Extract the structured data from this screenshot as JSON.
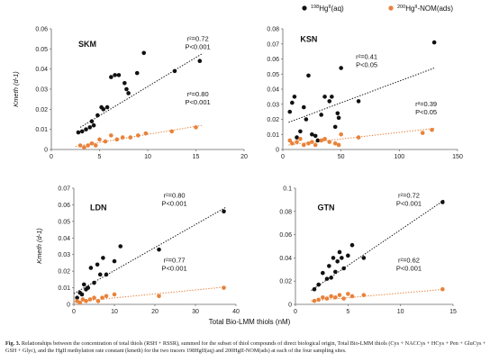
{
  "legend": {
    "items": [
      {
        "label": "198HgII(aq)",
        "color": "#111111"
      },
      {
        "label": "200HgII-NOM(ads)",
        "color": "#E8823A"
      }
    ]
  },
  "shared": {
    "ylabel": "Kmeth (d-1)",
    "xlabel": "Total Bio-LMM thiols (nM)"
  },
  "caption": {
    "label": "Fig. 3.",
    "text": "Relationships between the concentration of total thiols (RSH + RSSR), summed for the subset of thiol compounds of direct biological origin, Total Bio-LMM thiols (Cys + NACCys + HCys + Pen + GluCys + GSH + Glyc), and the HgII methylation rate constant (kmeth) for the two tracers 198HgII(aq) and 200HgII-NOM(ads) at each of the four sampling sites."
  },
  "chart_data": [
    {
      "type": "scatter",
      "panel": "SKM",
      "xlim": [
        0,
        20
      ],
      "ylim": [
        0,
        0.06
      ],
      "xticks": [
        "0",
        "5",
        "10",
        "15",
        "20"
      ],
      "yticks": [
        "0",
        "0.01",
        "0.02",
        "0.03",
        "0.04",
        "0.05",
        "0.06"
      ],
      "series": [
        {
          "name": "198HgII(aq)",
          "x": [
            2.8,
            3.2,
            3.6,
            4.0,
            4.2,
            4.4,
            4.8,
            5.2,
            5.4,
            5.8,
            6.2,
            6.6,
            7.0,
            7.6,
            7.8,
            8.0,
            8.9,
            9.6,
            12.8,
            15.4
          ],
          "y": [
            0.0085,
            0.009,
            0.01,
            0.011,
            0.014,
            0.012,
            0.017,
            0.021,
            0.02,
            0.021,
            0.036,
            0.037,
            0.037,
            0.033,
            0.03,
            0.028,
            0.038,
            0.048,
            0.039,
            0.044
          ]
        },
        {
          "name": "200HgII-NOM(ads)",
          "x": [
            3.0,
            3.4,
            3.8,
            4.2,
            4.6,
            5.0,
            5.6,
            6.2,
            6.8,
            7.4,
            8.2,
            9.0,
            9.8,
            12.5,
            15.0
          ],
          "y": [
            0.002,
            0.001,
            0.002,
            0.003,
            0.002,
            0.005,
            0.004,
            0.007,
            0.005,
            0.006,
            0.006,
            0.007,
            0.008,
            0.009,
            0.011
          ]
        }
      ],
      "trendlines": [
        {
          "x": [
            3.0,
            15.6
          ],
          "y": [
            0.011,
            0.0475
          ]
        },
        {
          "x": [
            2.5,
            15.6
          ],
          "y": [
            0.0015,
            0.012
          ]
        }
      ],
      "annotations": [
        {
          "r2": "r²=0.72",
          "p": "P<0.001"
        },
        {
          "r2": "r²=0.80",
          "p": "P<0.001"
        }
      ]
    },
    {
      "type": "scatter",
      "panel": "KSN",
      "xlim": [
        0,
        150
      ],
      "ylim": [
        0,
        0.08
      ],
      "xticks": [
        "0",
        "50",
        "100",
        "150"
      ],
      "yticks": [
        "0",
        "0.01",
        "0.02",
        "0.03",
        "0.04",
        "0.05",
        "0.06",
        "0.07",
        "0.08"
      ],
      "series": [
        {
          "name": "198HgII(aq)",
          "x": [
            6,
            8,
            10,
            12,
            15,
            18,
            20,
            22,
            25,
            28,
            30,
            33,
            36,
            40,
            42,
            45,
            47,
            48,
            50,
            65,
            130
          ],
          "y": [
            0.025,
            0.031,
            0.035,
            0.008,
            0.012,
            0.028,
            0.02,
            0.049,
            0.01,
            0.009,
            0.006,
            0.023,
            0.035,
            0.032,
            0.035,
            0.015,
            0.024,
            0.021,
            0.054,
            0.032,
            0.071
          ]
        },
        {
          "name": "200HgII-NOM(ads)",
          "x": [
            6,
            8,
            12,
            15,
            18,
            22,
            25,
            28,
            33,
            36,
            40,
            45,
            48,
            50,
            65,
            120,
            128
          ],
          "y": [
            0.006,
            0.004,
            0.005,
            0.007,
            0.003,
            0.004,
            0.005,
            0.003,
            0.006,
            0.007,
            0.005,
            0.004,
            0.003,
            0.01,
            0.008,
            0.011,
            0.013
          ]
        }
      ],
      "trendlines": [
        {
          "x": [
            5,
            130
          ],
          "y": [
            0.018,
            0.054
          ]
        },
        {
          "x": [
            5,
            130
          ],
          "y": [
            0.003,
            0.014
          ]
        }
      ],
      "annotations": [
        {
          "r2": "r²=0.41",
          "p": "P<0.05"
        },
        {
          "r2": "r²=0.39",
          "p": "P<0.05"
        }
      ]
    },
    {
      "type": "scatter",
      "panel": "LDN",
      "xlim": [
        0,
        40
      ],
      "ylim": [
        0,
        0.07
      ],
      "xticks": [
        "0",
        "10",
        "20",
        "30",
        "40"
      ],
      "yticks": [
        "0",
        "0.01",
        "0.02",
        "0.03",
        "0.04",
        "0.05",
        "0.06",
        "0.07"
      ],
      "series": [
        {
          "name": "198HgII(aq)",
          "x": [
            0.8,
            1.5,
            2.0,
            2.5,
            3.0,
            3.5,
            4.2,
            5.0,
            5.8,
            6.5,
            7.2,
            8.0,
            10.0,
            11.5,
            21.0,
            37.0
          ],
          "y": [
            0.004,
            0.007,
            0.006,
            0.012,
            0.009,
            0.01,
            0.022,
            0.013,
            0.024,
            0.018,
            0.028,
            0.018,
            0.026,
            0.035,
            0.033,
            0.056
          ]
        },
        {
          "name": "200HgII-NOM(ads)",
          "x": [
            0.8,
            1.5,
            2.2,
            3.0,
            4.0,
            5.0,
            6.0,
            7.0,
            8.0,
            10.0,
            21.0,
            37.0
          ],
          "y": [
            0.002,
            0.001,
            0.003,
            0.002,
            0.003,
            0.004,
            0.002,
            0.004,
            0.005,
            0.006,
            0.005,
            0.01
          ]
        }
      ],
      "trendlines": [
        {
          "x": [
            0,
            37.5
          ],
          "y": [
            0.0065,
            0.0585
          ]
        },
        {
          "x": [
            0,
            37.5
          ],
          "y": [
            0.0015,
            0.0105
          ]
        }
      ],
      "annotations": [
        {
          "r2": "r²=0.80",
          "p": "P<0.001"
        },
        {
          "r2": "r²=0.77",
          "p": "P<0.001"
        }
      ]
    },
    {
      "type": "scatter",
      "panel": "GTN",
      "xlim": [
        0,
        15
      ],
      "ylim": [
        0,
        0.1
      ],
      "xticks": [
        "0",
        "5",
        "10",
        "15"
      ],
      "yticks": [
        "0",
        "0.02",
        "0.04",
        "0.06",
        "0.08",
        "0.1"
      ],
      "series": [
        {
          "name": "198HgII(aq)",
          "x": [
            1.8,
            2.2,
            2.6,
            3.0,
            3.2,
            3.4,
            3.6,
            3.8,
            4.0,
            4.2,
            4.4,
            4.6,
            5.0,
            5.4,
            6.5,
            14.0
          ],
          "y": [
            0.013,
            0.017,
            0.027,
            0.022,
            0.033,
            0.023,
            0.04,
            0.028,
            0.037,
            0.045,
            0.04,
            0.031,
            0.042,
            0.051,
            0.04,
            0.088
          ]
        },
        {
          "name": "200HgII-NOM(ads)",
          "x": [
            1.8,
            2.2,
            2.6,
            3.0,
            3.4,
            3.8,
            4.2,
            4.6,
            5.0,
            5.4,
            6.5,
            14.0
          ],
          "y": [
            0.003,
            0.004,
            0.006,
            0.005,
            0.007,
            0.006,
            0.008,
            0.005,
            0.009,
            0.007,
            0.008,
            0.013
          ]
        }
      ],
      "trendlines": [
        {
          "x": [
            1.5,
            14.2
          ],
          "y": [
            0.012,
            0.09
          ]
        },
        {
          "x": [
            1.5,
            14.2
          ],
          "y": [
            0.003,
            0.013
          ]
        }
      ],
      "annotations": [
        {
          "r2": "r²=0.72",
          "p": "P<0.001"
        },
        {
          "r2": "r²=0.62",
          "p": "P<0.001"
        }
      ]
    }
  ]
}
